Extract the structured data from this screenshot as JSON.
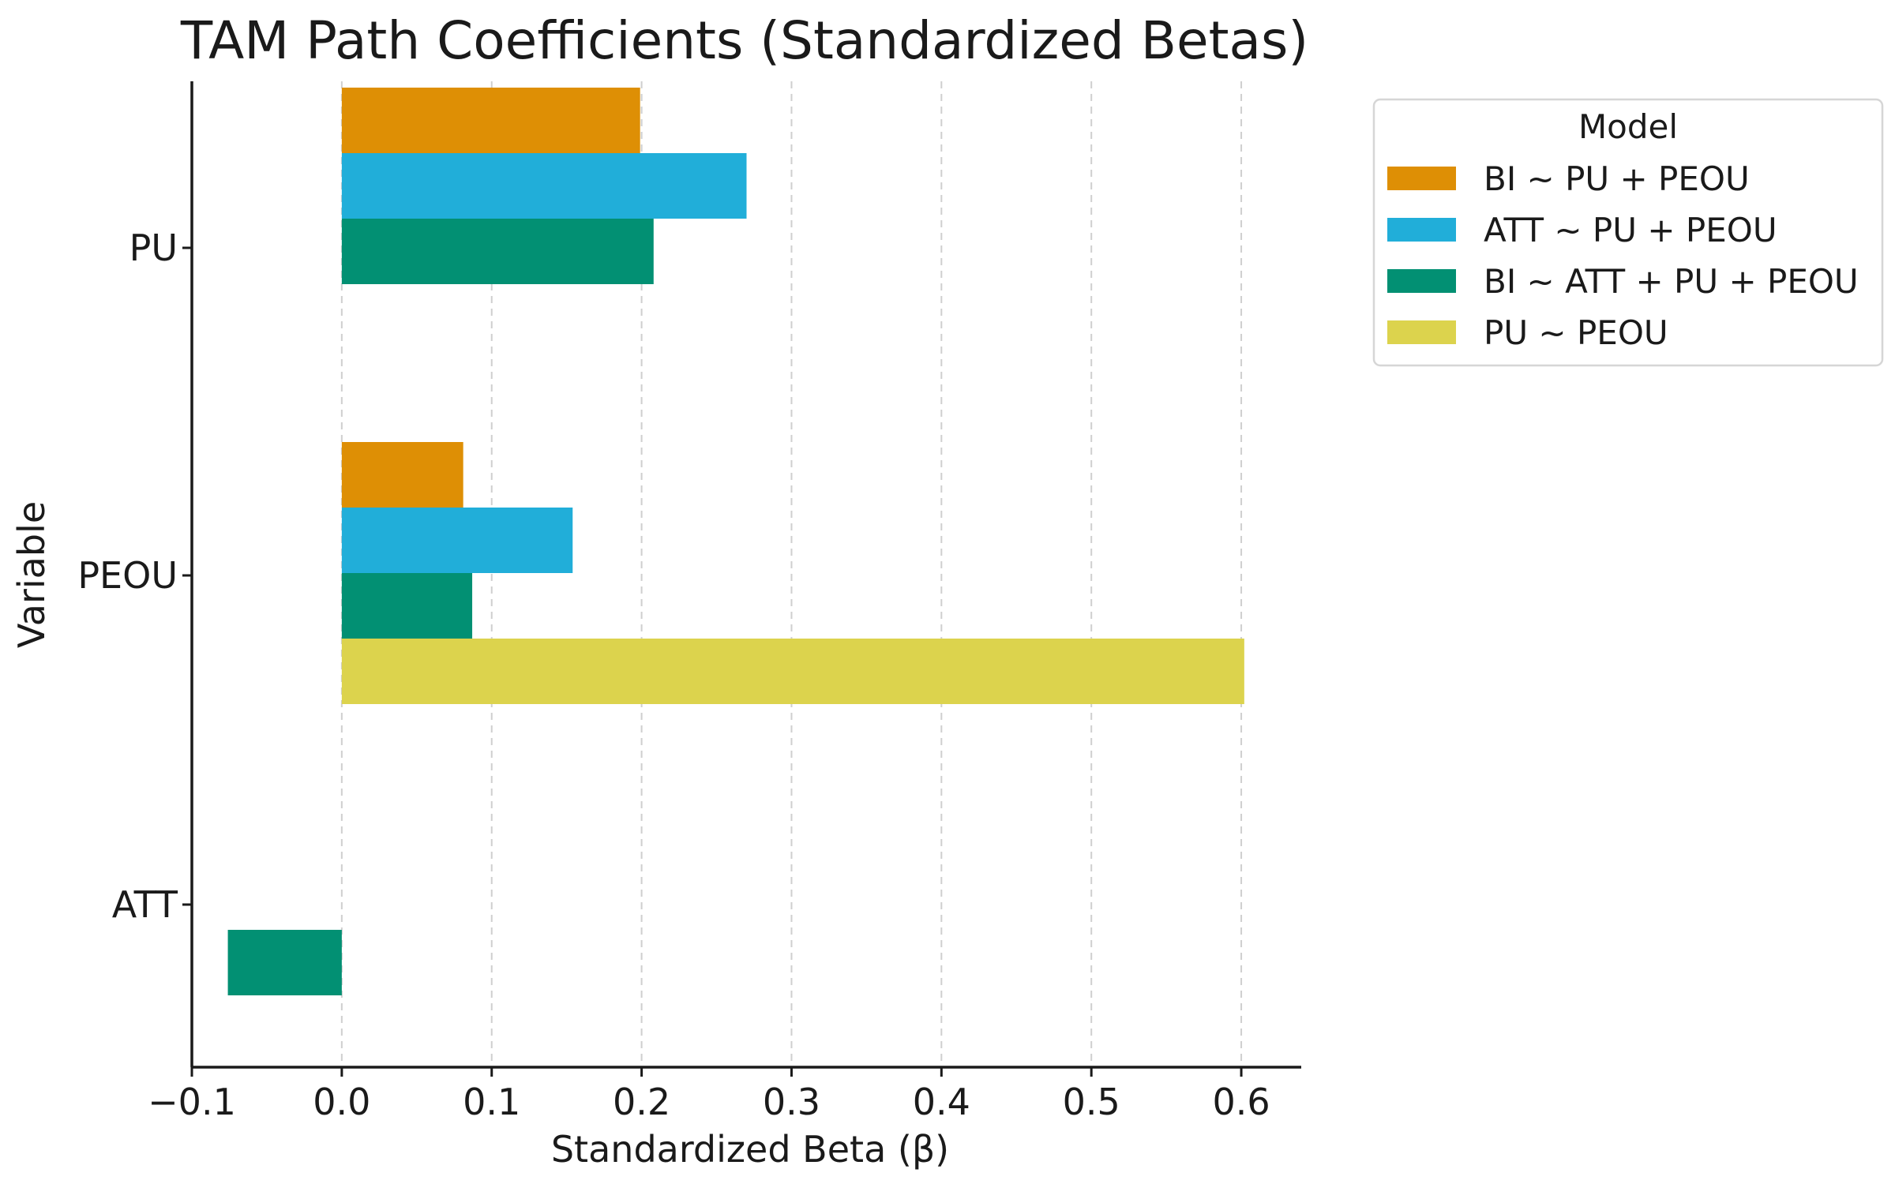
{
  "chart_data": {
    "type": "bar",
    "orientation": "horizontal",
    "title": "TAM Path Coefficients (Standardized Betas)",
    "xlabel": "Standardized Beta (β)",
    "ylabel": "Variable",
    "xlim": [
      -0.1,
      0.64
    ],
    "xticks": [
      -0.1,
      0.0,
      0.1,
      0.2,
      0.3,
      0.4,
      0.5,
      0.6
    ],
    "xtick_labels": [
      "−0.1",
      "0.0",
      "0.1",
      "0.2",
      "0.3",
      "0.4",
      "0.5",
      "0.6"
    ],
    "categories": [
      "PU",
      "PEOU",
      "ATT"
    ],
    "grid": "vertical dashed",
    "legend_title": "Model",
    "legend_position": "outside-right-top",
    "series": [
      {
        "name": "BI ~ PU + PEOU",
        "color": "#DE8F05",
        "values": [
          0.199,
          0.081,
          null
        ]
      },
      {
        "name": "ATT ~ PU + PEOU",
        "color": "#21AED9",
        "values": [
          0.27,
          0.154,
          null
        ]
      },
      {
        "name": "BI ~ ATT + PU + PEOU",
        "color": "#029073",
        "values": [
          0.208,
          0.087,
          -0.076
        ]
      },
      {
        "name": "PU ~ PEOU",
        "color": "#DCD34D",
        "values": [
          null,
          0.602,
          null
        ]
      }
    ]
  }
}
